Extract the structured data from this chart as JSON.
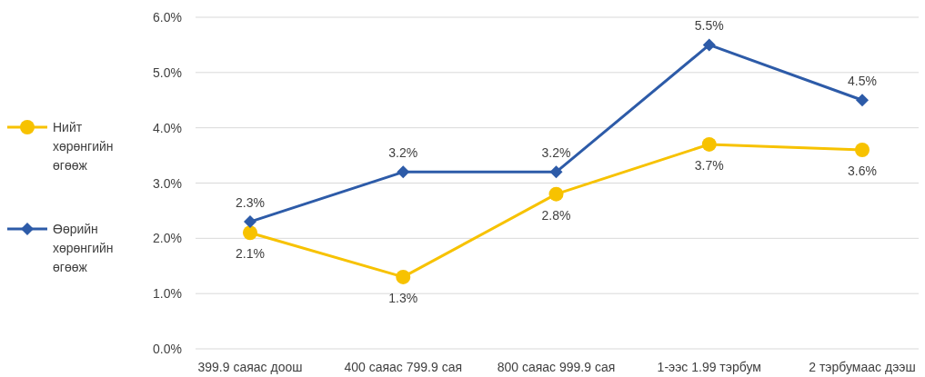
{
  "chart_data": {
    "type": "line",
    "categories": [
      "399.9 саяас доош",
      "400 саяас 799.9 сая",
      "800 саяас 999.9 сая",
      "1-ээс 1.99 тэрбум",
      "2 тэрбумаас дээш"
    ],
    "series": [
      {
        "name": "Нийт хөрөнгийн өгөөж",
        "color": "#f7c200",
        "marker": "circle",
        "values": [
          2.1,
          1.3,
          2.8,
          3.7,
          3.6
        ],
        "value_labels": [
          "2.1%",
          "1.3%",
          "2.8%",
          "3.7%",
          "3.6%"
        ]
      },
      {
        "name": "Өөрийн хөрөнгийн өгөөж",
        "color": "#2d5ba8",
        "marker": "diamond",
        "values": [
          2.3,
          3.2,
          3.2,
          5.5,
          4.5
        ],
        "value_labels": [
          "2.3%",
          "3.2%",
          "3.2%",
          "5.5%",
          "4.5%"
        ]
      }
    ],
    "ylim": [
      0,
      6
    ],
    "yticks": [
      {
        "value": 0,
        "label": "0.0%"
      },
      {
        "value": 1,
        "label": "1.0%"
      },
      {
        "value": 2,
        "label": "2.0%"
      },
      {
        "value": 3,
        "label": "3.0%"
      },
      {
        "value": 4,
        "label": "4.0%"
      },
      {
        "value": 5,
        "label": "5.0%"
      },
      {
        "value": 6,
        "label": "6.0%"
      }
    ],
    "grid": "y",
    "legend": "left",
    "line_style": "solid"
  }
}
